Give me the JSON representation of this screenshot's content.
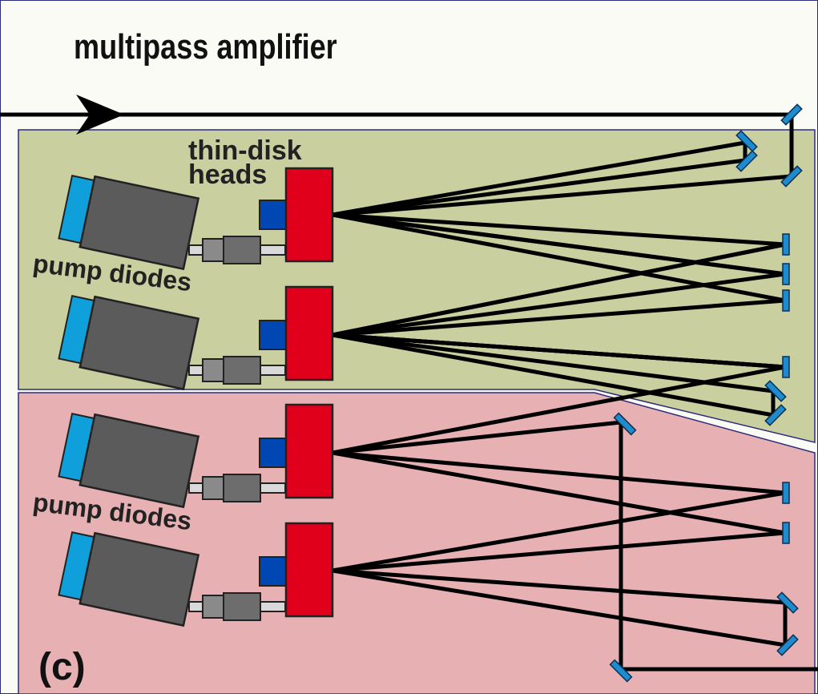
{
  "title": "multipass amplifier",
  "labels": {
    "thin_disk_line1": "thin-disk",
    "thin_disk_line2": "heads",
    "pump_diodes_top": "pump diodes",
    "pump_diodes_bottom": "pump diodes",
    "panel": "(c)"
  },
  "colors": {
    "background": "#fbfbf5",
    "upper_region": "#c9cf9f",
    "lower_region": "#e7b1b3",
    "region_border": "#2b2b7a",
    "diode_body": "#5b5b5b",
    "diode_cap": "#0fa0dc",
    "disk_head": "#e0001b",
    "disk_block": "#0047b3",
    "mirror": "#1e8ccc",
    "beam": "#000000"
  },
  "components": {
    "pump_diodes": 4,
    "thin_disk_heads": 4
  }
}
